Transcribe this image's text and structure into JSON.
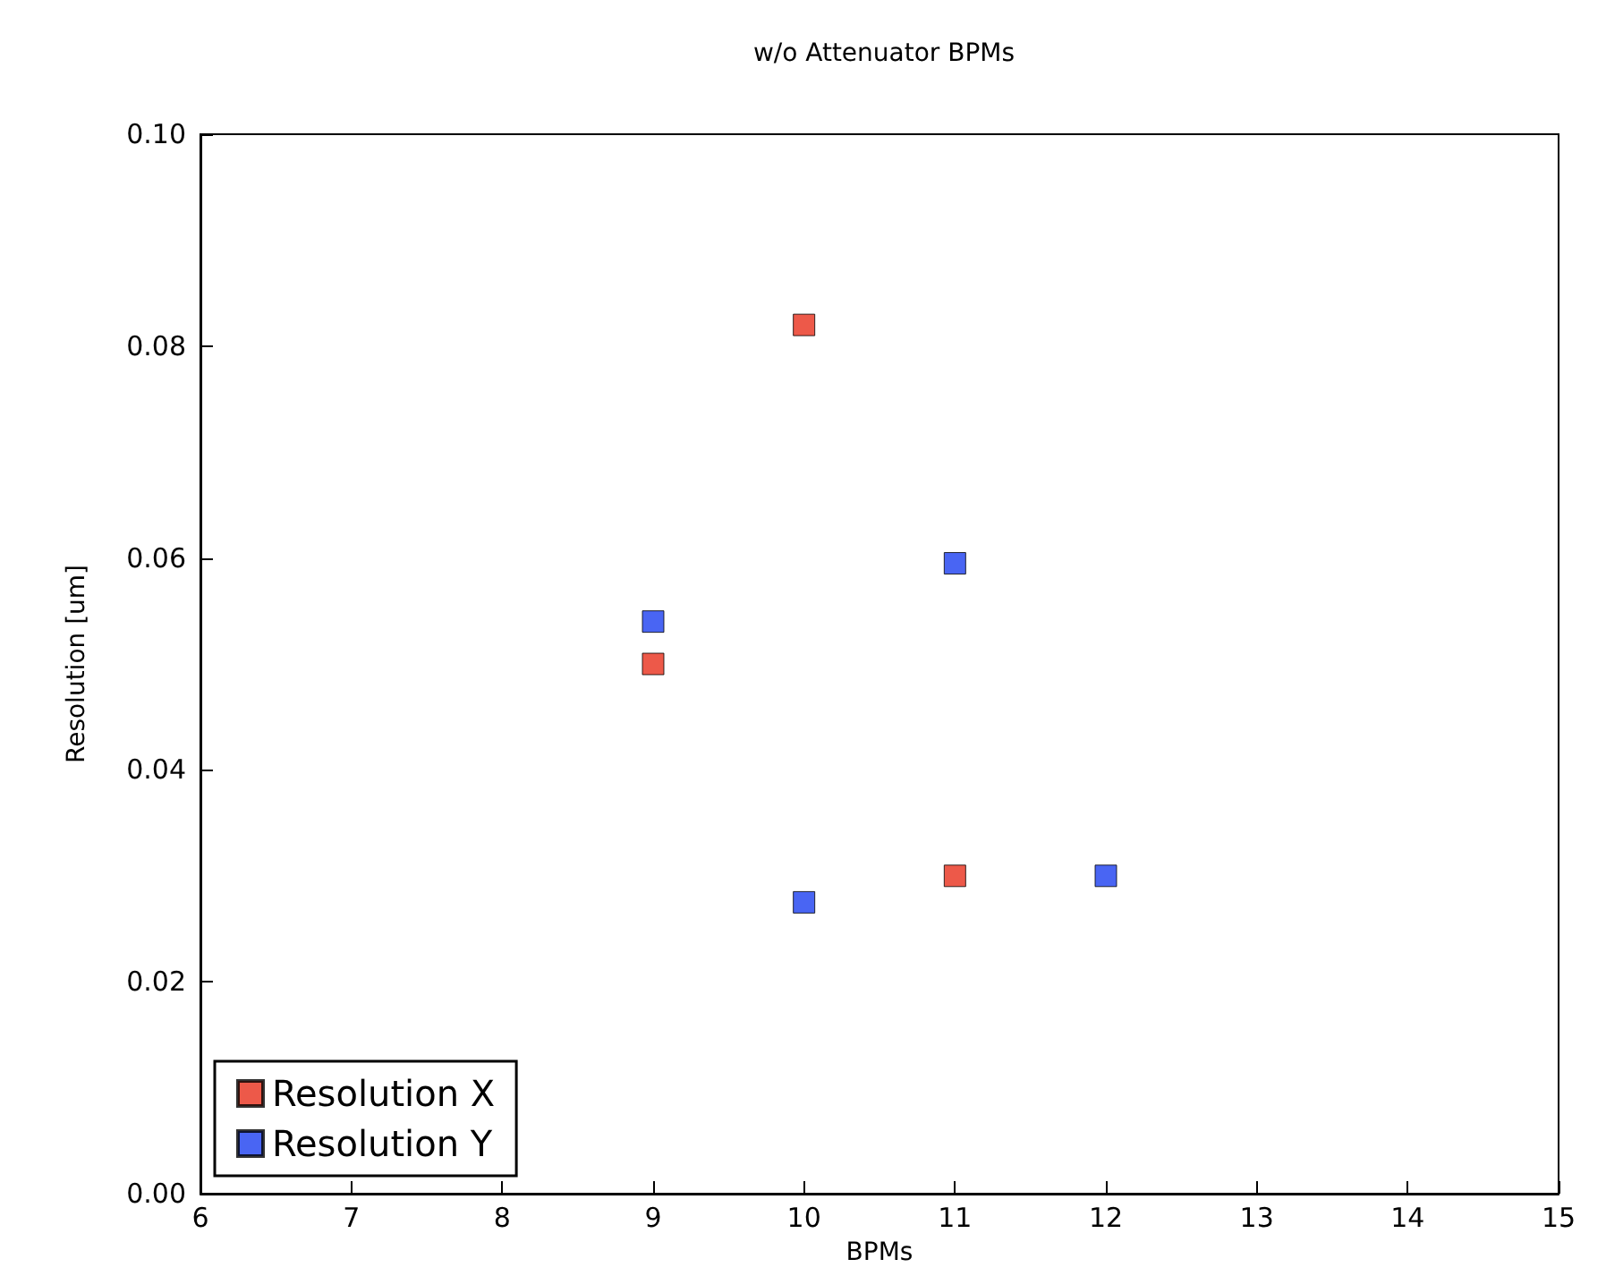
{
  "chart_data": {
    "type": "scatter",
    "title": "w/o Attenuator BPMs",
    "xlabel": "BPMs",
    "ylabel": "Resolution [um]",
    "series": [
      {
        "name": "Resolution X",
        "color": "#e8301c",
        "x": [
          9,
          10,
          11
        ],
        "values": [
          0.05,
          0.082,
          0.03
        ]
      },
      {
        "name": "Resolution Y",
        "color": "#1c3ff0",
        "x": [
          9,
          10,
          11,
          12
        ],
        "values": [
          0.054,
          0.0275,
          0.0595,
          0.03
        ]
      }
    ],
    "xlim": [
      6,
      15
    ],
    "xticks": [
      6,
      7,
      8,
      9,
      10,
      11,
      12,
      13,
      14,
      15
    ],
    "ylim": [
      0,
      0.1
    ],
    "yticks": [
      {
        "value": 0,
        "label": "0.00"
      },
      {
        "value": 0.02,
        "label": "0.02"
      },
      {
        "value": 0.04,
        "label": "0.04"
      },
      {
        "value": 0.06,
        "label": "0.06"
      },
      {
        "value": 0.08,
        "label": "0.08"
      },
      {
        "value": 0.1,
        "label": "0.10"
      }
    ],
    "marker": "square",
    "legend": "bottom left",
    "grid": false
  }
}
